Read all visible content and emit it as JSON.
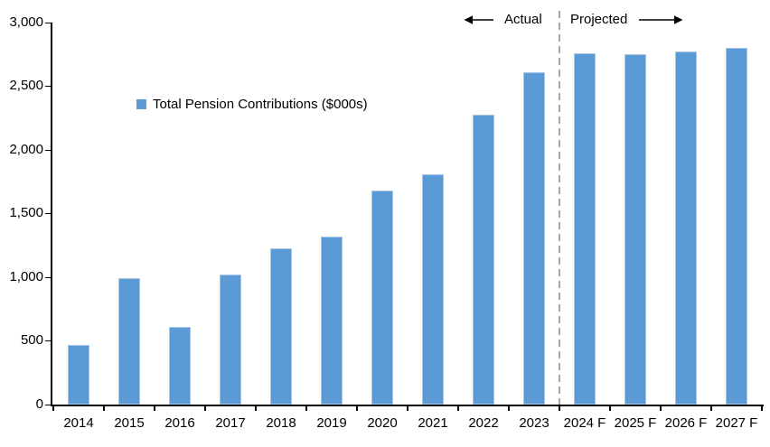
{
  "chart_data": {
    "type": "bar",
    "title": "",
    "legend": "Total Pension Contributions ($000s)",
    "categories": [
      "2014",
      "2015",
      "2016",
      "2017",
      "2018",
      "2019",
      "2020",
      "2021",
      "2022",
      "2023",
      "2024 F",
      "2025 F",
      "2026 F",
      "2027 F"
    ],
    "values": [
      470,
      990,
      610,
      1020,
      1230,
      1320,
      1680,
      1810,
      2280,
      2610,
      2760,
      2750,
      2770,
      2800
    ],
    "xlabel": "",
    "ylabel": "",
    "ylim": [
      0,
      3000
    ],
    "ytick_step": 500,
    "yticks": [
      0,
      500,
      1000,
      1500,
      2000,
      2500,
      3000
    ],
    "ytick_labels": [
      "0",
      "500",
      "1,000",
      "1,500",
      "2,000",
      "2,500",
      "3,000"
    ],
    "grid": false,
    "legend_position": "inside-upper-left",
    "annotations": {
      "actual": "Actual",
      "projected": "Projected",
      "divider_between": [
        "2023",
        "2024 F"
      ]
    },
    "colors": {
      "bar_fill": "#5B9BD5",
      "bar_edge": "#A9C6E8",
      "divider": "#A6A6A6",
      "axis": "#000000",
      "text": "#000000",
      "background": "#FFFFFF"
    }
  }
}
